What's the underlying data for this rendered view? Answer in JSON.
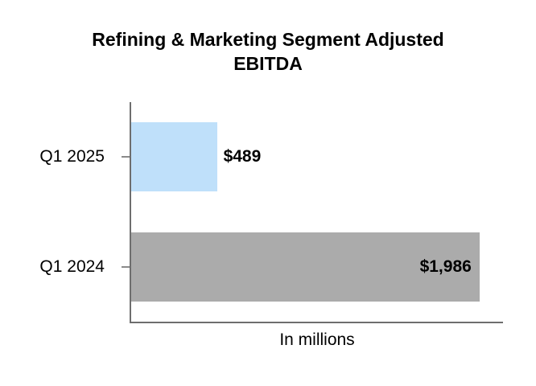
{
  "page": {
    "background": "#ffffff",
    "text_color": "#000000"
  },
  "chart_data": {
    "type": "bar",
    "orientation": "horizontal",
    "title": "Refining & Marketing Segment Adjusted EBITDA",
    "xlabel": "In millions",
    "ylabel": "",
    "categories": [
      "Q1 2025",
      "Q1 2024"
    ],
    "values": [
      489,
      1986
    ],
    "value_labels": [
      "$489",
      "$1,986"
    ],
    "bar_colors": [
      "#BFE0FA",
      "#ABABAB"
    ],
    "label_positions": [
      "outside-end",
      "inside-end"
    ],
    "xlim": [
      0,
      2120
    ],
    "grid": false,
    "legend": false,
    "axis_color": "#6E6E6E",
    "tick_color": "#8A8A8A",
    "label_color": "#000000"
  }
}
